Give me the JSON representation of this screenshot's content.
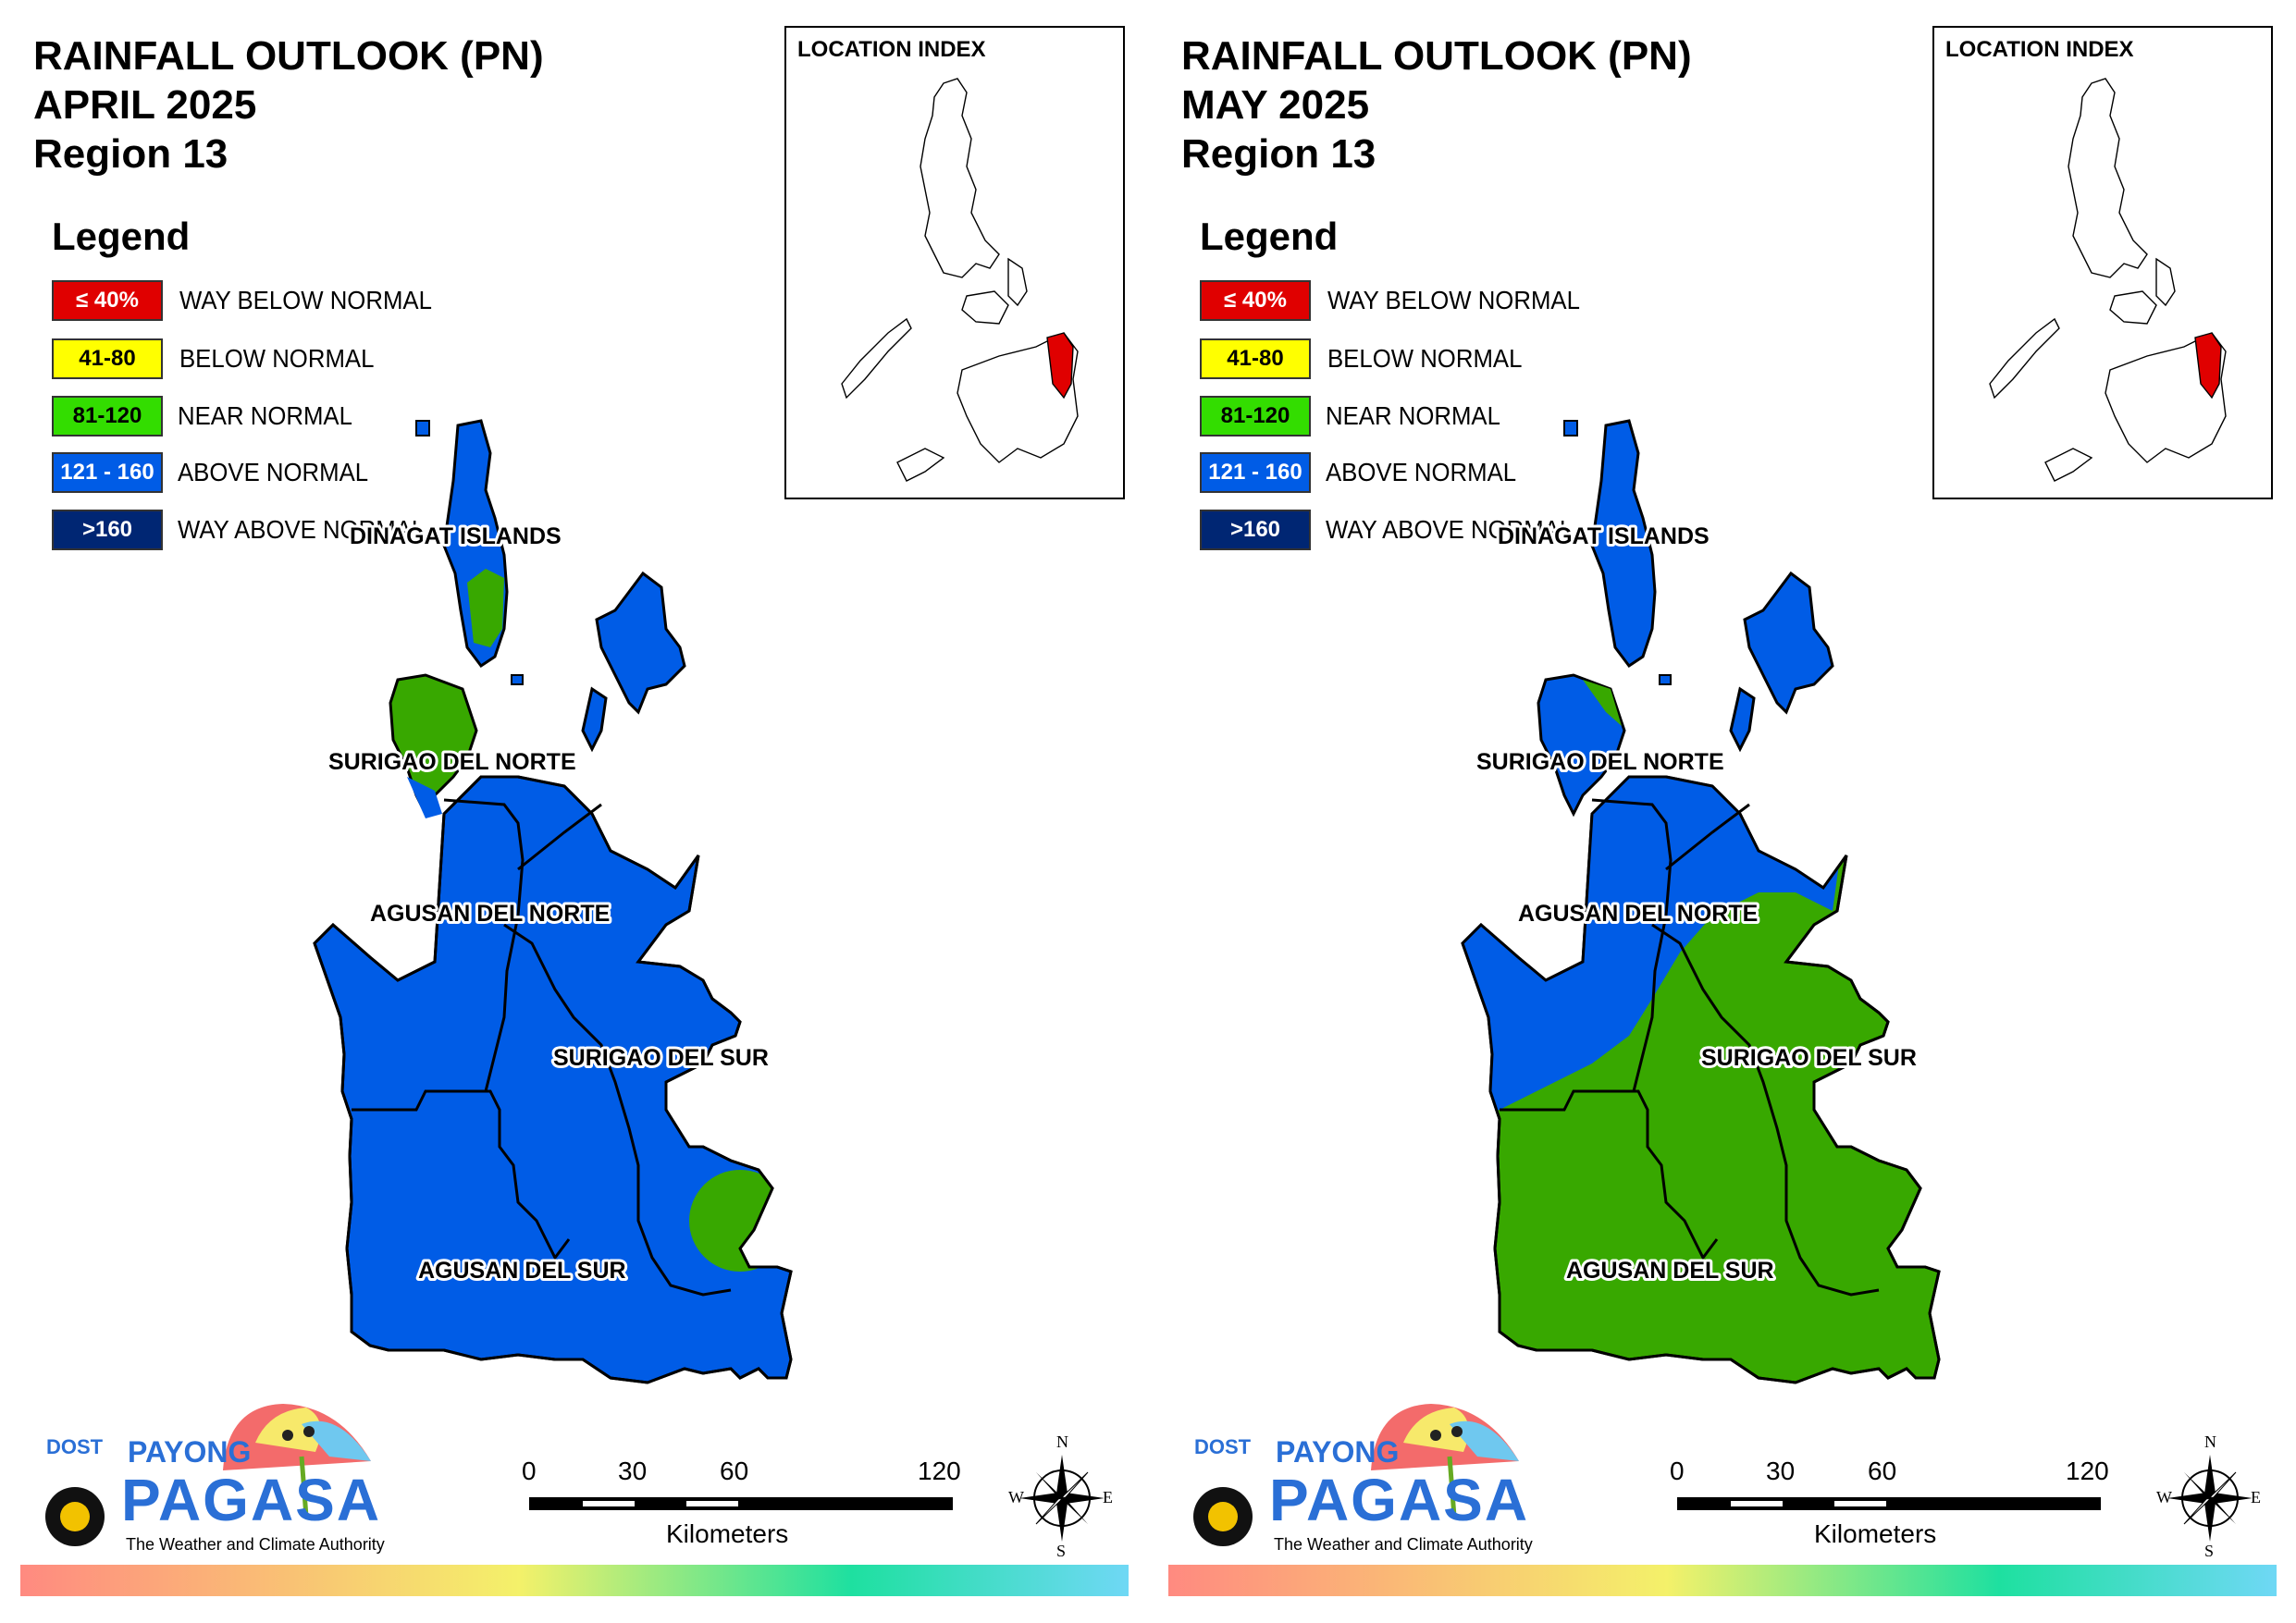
{
  "legend": {
    "title": "Legend",
    "items": [
      {
        "range": "≤ 40%",
        "label": "WAY BELOW NORMAL",
        "color": "#e00000",
        "text_color": "#ffffff"
      },
      {
        "range": "41-80",
        "label": "BELOW NORMAL",
        "color": "#ffff00",
        "text_color": "#000000"
      },
      {
        "range": "81-120",
        "label": "NEAR NORMAL",
        "color": "#33dd00",
        "text_color": "#000000"
      },
      {
        "range": "121 - 160",
        "label": "ABOVE NORMAL",
        "color": "#005ce6",
        "text_color": "#ffffff"
      },
      {
        "range": ">160",
        "label": "WAY ABOVE NORMAL",
        "color": "#002673",
        "text_color": "#ffffff"
      }
    ]
  },
  "map_colors": {
    "above_normal": "#005ce6",
    "near_normal": "#38a800",
    "index_highlight": "#e00000"
  },
  "provinces": [
    "DINAGAT ISLANDS",
    "SURIGAO DEL NORTE",
    "AGUSAN DEL NORTE",
    "SURIGAO DEL SUR",
    "AGUSAN DEL SUR"
  ],
  "panels": [
    {
      "title_line1": "RAINFALL OUTLOOK (PN)",
      "title_line2": "APRIL 2025",
      "title_line3": "Region 13",
      "dominant_category": "ABOVE NORMAL",
      "near_normal_areas": [
        "part of DINAGAT ISLANDS",
        "part of SURIGAO DEL NORTE",
        "southeast coast of SURIGAO DEL SUR"
      ]
    },
    {
      "title_line1": "RAINFALL OUTLOOK (PN)",
      "title_line2": "MAY 2025",
      "title_line3": "Region 13",
      "dominant_category": "NEAR NORMAL",
      "above_normal_areas": [
        "DINAGAT ISLANDS",
        "SURIGAO DEL NORTE",
        "AGUSAN DEL NORTE",
        "northern SURIGAO DEL SUR"
      ]
    }
  ],
  "inset": {
    "title": "LOCATION INDEX"
  },
  "scale": {
    "ticks": [
      "0",
      "30",
      "60",
      "120"
    ],
    "unit": "Kilometers"
  },
  "compass": {
    "n": "N",
    "s": "S",
    "e": "E",
    "w": "W"
  },
  "logo": {
    "dost": "DOST",
    "payong": "PAYONG",
    "pagasa": "PAGASA",
    "tagline": "The Weather and Climate Authority"
  },
  "icons": [
    "compass-rose-icon",
    "pagasa-umbrella-logo-icon",
    "dost-seal-icon"
  ]
}
